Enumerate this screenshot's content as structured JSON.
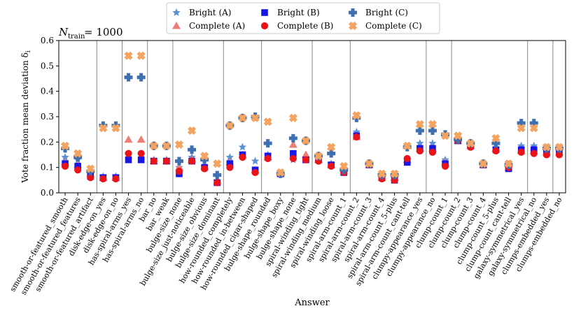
{
  "chart_data": {
    "type": "scatter",
    "title": "N",
    "title_sub": "train",
    "title_rest": " = 1000",
    "xlabel": "Answer",
    "ylabel": "Vote fraction mean deviation δ",
    "ylabel_sub": "i",
    "ylim": [
      0.0,
      0.6
    ],
    "yticks": [
      "0.0",
      "0.1",
      "0.2",
      "0.3",
      "0.4",
      "0.5",
      "0.6"
    ],
    "ytick_values": [
      0.0,
      0.1,
      0.2,
      0.3,
      0.4,
      0.5,
      0.6
    ],
    "legend_position": "top-center",
    "group_boundaries": [
      3,
      5,
      7,
      9,
      13,
      16,
      20,
      23,
      29,
      31,
      37,
      39
    ],
    "categories": [
      "smooth-or-featured_smooth",
      "smooth-or-featured_features",
      "smooth-or-featured_artifact",
      "disk-edge-on_yes",
      "disk-edge-on_no",
      "has-spiral-arms_yes",
      "has-spiral-arms_no",
      "bar_no",
      "bar_weak",
      "bulge-size_none",
      "bulge-size_just-noticeable",
      "bulge-size_obvious",
      "bulge-size_dominant",
      "how-rounded_completely",
      "how-rounded_in-between",
      "how-rounded_cigar-shaped",
      "bulge-shape_rounded",
      "bulge-shape_boxy",
      "bulge-shape_none",
      "spiral-winding_tight",
      "spiral-winding_medium",
      "spiral-winding_loose",
      "spiral-arm-count_1",
      "spiral-arm-count_2",
      "spiral-arm-count_3",
      "spiral-arm-count_4",
      "spiral-arm-count_5-plus",
      "spiral-arm-count_cant-tell",
      "clumpy-appearance_yes",
      "clumpy-appearance_no",
      "clump-count_1",
      "clump-count_2",
      "clump-count_3",
      "clump-count_4",
      "clump-count_5-plus",
      "clump-count_cant-tell",
      "galaxy-symmetrical_yes",
      "galaxy-symmetrical_no",
      "clumps-embedded_yes",
      "clumps-embedded_no"
    ],
    "series": [
      {
        "name": "Bright (A)",
        "marker": "star",
        "color": "#5b8fd6",
        "values": [
          0.14,
          0.13,
          0.08,
          0.065,
          0.065,
          0.13,
          0.13,
          0.13,
          0.13,
          0.1,
          0.14,
          0.1,
          0.045,
          0.14,
          0.18,
          0.125,
          0.15,
          0.075,
          0.13,
          0.13,
          0.135,
          0.115,
          0.09,
          0.24,
          0.11,
          0.065,
          0.055,
          0.13,
          0.195,
          0.195,
          0.13,
          0.205,
          0.18,
          0.11,
          0.175,
          0.105,
          0.185,
          0.185,
          0.17,
          0.17
        ]
      },
      {
        "name": "Complete (A)",
        "marker": "triangle",
        "color": "#ee7d75",
        "values": [
          0.12,
          0.11,
          0.075,
          0.06,
          0.06,
          0.21,
          0.21,
          0.125,
          0.125,
          0.1,
          0.13,
          0.105,
          0.045,
          0.12,
          0.15,
          0.09,
          0.14,
          0.075,
          0.19,
          0.15,
          0.13,
          0.11,
          0.085,
          0.22,
          0.11,
          0.06,
          0.06,
          0.13,
          0.175,
          0.175,
          0.12,
          0.205,
          0.185,
          0.11,
          0.175,
          0.1,
          0.165,
          0.165,
          0.16,
          0.16
        ]
      },
      {
        "name": "Bright (B)",
        "marker": "square",
        "color": "#1616e8",
        "values": [
          0.115,
          0.105,
          0.065,
          0.06,
          0.06,
          0.13,
          0.13,
          0.125,
          0.125,
          0.075,
          0.125,
          0.1,
          0.04,
          0.115,
          0.15,
          0.09,
          0.145,
          0.075,
          0.155,
          0.13,
          0.13,
          0.11,
          0.08,
          0.225,
          0.11,
          0.06,
          0.05,
          0.12,
          0.175,
          0.175,
          0.115,
          0.205,
          0.185,
          0.11,
          0.17,
          0.095,
          0.17,
          0.17,
          0.16,
          0.16
        ]
      },
      {
        "name": "Complete (B)",
        "marker": "circle",
        "color": "#e8141a",
        "values": [
          0.105,
          0.09,
          0.06,
          0.055,
          0.055,
          0.155,
          0.155,
          0.125,
          0.125,
          0.085,
          0.125,
          0.095,
          0.04,
          0.1,
          0.14,
          0.08,
          0.135,
          0.075,
          0.135,
          0.13,
          0.125,
          0.105,
          0.08,
          0.22,
          0.11,
          0.055,
          0.05,
          0.135,
          0.165,
          0.16,
          0.105,
          0.205,
          0.18,
          0.11,
          0.165,
          0.1,
          0.16,
          0.155,
          0.15,
          0.15
        ]
      },
      {
        "name": "Bright (C)",
        "marker": "plus",
        "color": "#3e6fb0",
        "values": [
          0.175,
          0.14,
          0.085,
          0.265,
          0.265,
          0.455,
          0.455,
          0.185,
          0.185,
          0.125,
          0.17,
          0.13,
          0.07,
          0.265,
          0.295,
          0.3,
          0.195,
          0.075,
          0.215,
          0.205,
          0.145,
          0.155,
          0.09,
          0.295,
          0.115,
          0.07,
          0.07,
          0.18,
          0.245,
          0.245,
          0.23,
          0.21,
          0.195,
          0.115,
          0.195,
          0.11,
          0.275,
          0.275,
          0.175,
          0.175
        ]
      },
      {
        "name": "Complete (C)",
        "marker": "x",
        "color": "#f4a460",
        "values": [
          0.185,
          0.155,
          0.095,
          0.255,
          0.255,
          0.54,
          0.54,
          0.185,
          0.185,
          0.19,
          0.245,
          0.145,
          0.115,
          0.265,
          0.295,
          0.295,
          0.28,
          0.08,
          0.295,
          0.205,
          0.145,
          0.18,
          0.105,
          0.305,
          0.115,
          0.075,
          0.075,
          0.185,
          0.27,
          0.27,
          0.225,
          0.225,
          0.195,
          0.115,
          0.215,
          0.115,
          0.255,
          0.255,
          0.18,
          0.18
        ]
      }
    ]
  }
}
